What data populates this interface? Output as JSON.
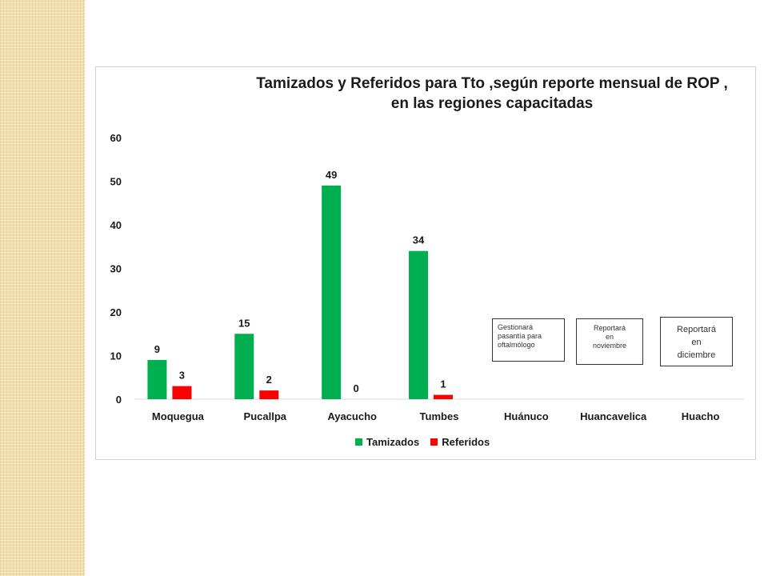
{
  "colors": {
    "tamizados": "#00b050",
    "referidos": "#ff0000",
    "grid": "#d9d9d9"
  },
  "chart_data": {
    "type": "bar",
    "title": "Tamizados y Referidos para Tto ,según reporte mensual de ROP , en las regiones capacitadas",
    "title_line1": "Tamizados y Referidos para Tto ,según reporte mensual de ROP ,",
    "title_line2": "en las regiones capacitadas",
    "categories": [
      "Moquegua",
      "Pucallpa",
      "Ayacucho",
      "Tumbes",
      "Huánuco",
      "Huancavelica",
      "Huacho"
    ],
    "series": [
      {
        "name": "Tamizados",
        "values": [
          9,
          15,
          49,
          34,
          null,
          null,
          null
        ]
      },
      {
        "name": "Referidos",
        "values": [
          3,
          2,
          0,
          1,
          null,
          null,
          null
        ]
      }
    ],
    "ylim": [
      0,
      60
    ],
    "yticks": [
      0,
      10,
      20,
      30,
      40,
      50,
      60
    ],
    "grid": false,
    "legend": "bottom",
    "notes": [
      {
        "category": "Huánuco",
        "lines": [
          "Gestionará",
          "pasantía para",
          "oftalmólogo"
        ]
      },
      {
        "category": "Huancavelica",
        "lines": [
          "Reportará",
          "en",
          "noviembre"
        ]
      },
      {
        "category": "Huacho",
        "lines": [
          "Reportará",
          "en",
          "diciembre"
        ]
      }
    ]
  }
}
